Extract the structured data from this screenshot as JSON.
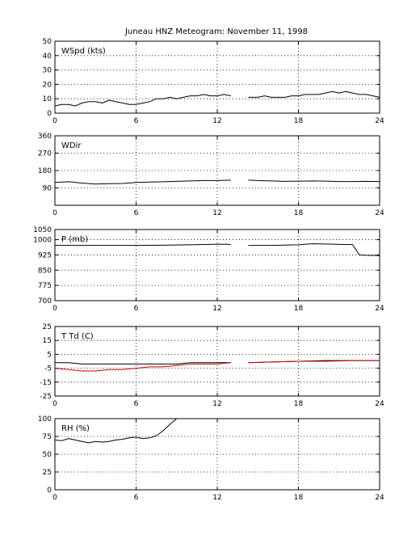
{
  "title": "Juneau HNZ Meteogram:  November 11, 1998",
  "chart_data": [
    {
      "type": "line",
      "label": "WSpd (kts)",
      "x_ticks": [
        0,
        6,
        12,
        18,
        24
      ],
      "y_ticks": [
        0,
        10,
        20,
        30,
        40,
        50
      ],
      "xlim": [
        0,
        24
      ],
      "ylim": [
        0,
        50
      ],
      "grid": true,
      "series": [
        {
          "color": "#000000",
          "points": [
            [
              0,
              5
            ],
            [
              0.5,
              6
            ],
            [
              1,
              6
            ],
            [
              1.5,
              5
            ],
            [
              2,
              7
            ],
            [
              2.5,
              8
            ],
            [
              3,
              8
            ],
            [
              3.5,
              7
            ],
            [
              4,
              9
            ],
            [
              4.5,
              8
            ],
            [
              5,
              7
            ],
            [
              5.5,
              6
            ],
            [
              6,
              6
            ],
            [
              6.5,
              7
            ],
            [
              7,
              8
            ],
            [
              7.5,
              10
            ],
            [
              8,
              10
            ],
            [
              8.5,
              11
            ],
            [
              9,
              10
            ],
            [
              9.5,
              11
            ],
            [
              10,
              12
            ],
            [
              10.5,
              12
            ],
            [
              11,
              13
            ],
            [
              11.5,
              12
            ],
            [
              12,
              12
            ],
            [
              12.5,
              13
            ],
            [
              13,
              12
            ],
            null,
            [
              14.3,
              11
            ],
            [
              15,
              11
            ],
            [
              15.5,
              12
            ],
            [
              16,
              11
            ],
            [
              16.5,
              11
            ],
            [
              17,
              11
            ],
            [
              17.5,
              12
            ],
            [
              18,
              12
            ],
            [
              18.5,
              13
            ],
            [
              19,
              13
            ],
            [
              19.5,
              13
            ],
            [
              20,
              14
            ],
            [
              20.5,
              15
            ],
            [
              21,
              14
            ],
            [
              21.5,
              15
            ],
            [
              22,
              14
            ],
            [
              22.5,
              13
            ],
            [
              23,
              13
            ],
            [
              23.5,
              12
            ],
            [
              24,
              11
            ]
          ]
        }
      ]
    },
    {
      "type": "line",
      "label": "WDir",
      "x_ticks": [
        0,
        6,
        12,
        18,
        24
      ],
      "y_ticks": [
        90,
        180,
        270,
        360
      ],
      "xlim": [
        0,
        24
      ],
      "ylim": [
        0,
        360
      ],
      "grid": true,
      "series": [
        {
          "color": "#000000",
          "points": [
            [
              0,
              118
            ],
            [
              1,
              122
            ],
            [
              2,
              115
            ],
            [
              3,
              110
            ],
            [
              4,
              112
            ],
            [
              5,
              113
            ],
            [
              6,
              118
            ],
            [
              7,
              120
            ],
            [
              8,
              122
            ],
            [
              9,
              124
            ],
            [
              10,
              126
            ],
            [
              11,
              128
            ],
            [
              12,
              128
            ],
            [
              13,
              130
            ],
            null,
            [
              14.3,
              130
            ],
            [
              15,
              128
            ],
            [
              16,
              126
            ],
            [
              17,
              124
            ],
            [
              18,
              125
            ],
            [
              19,
              126
            ],
            [
              20,
              125
            ],
            [
              21,
              123
            ],
            [
              22,
              123
            ],
            [
              23,
              124
            ],
            [
              24,
              123
            ]
          ]
        }
      ]
    },
    {
      "type": "line",
      "label": "P (mb)",
      "x_ticks": [
        0,
        6,
        12,
        18,
        24
      ],
      "y_ticks": [
        700,
        775,
        850,
        925,
        1000,
        1050
      ],
      "xlim": [
        0,
        24
      ],
      "ylim": [
        700,
        1050
      ],
      "grid": true,
      "series": [
        {
          "color": "#000000",
          "points": [
            [
              0,
              972
            ],
            [
              2,
              972
            ],
            [
              4,
              972
            ],
            [
              6,
              972
            ],
            [
              8,
              973
            ],
            [
              10,
              975
            ],
            [
              12,
              978
            ],
            [
              13,
              977
            ],
            null,
            [
              14.3,
              972
            ],
            [
              16,
              972
            ],
            [
              18,
              975
            ],
            [
              19,
              980
            ],
            [
              20,
              979
            ],
            [
              21,
              977
            ],
            [
              22,
              976
            ],
            [
              22.5,
              925
            ],
            [
              23,
              923
            ],
            [
              24,
              922
            ]
          ]
        }
      ]
    },
    {
      "type": "line",
      "label": "T Td (C)",
      "x_ticks": [
        0,
        6,
        12,
        18,
        24
      ],
      "y_ticks": [
        -25,
        -15,
        -5,
        5,
        15,
        25
      ],
      "xlim": [
        0,
        24
      ],
      "ylim": [
        -25,
        25
      ],
      "grid": true,
      "series": [
        {
          "color": "#000000",
          "points": [
            [
              0,
              -1
            ],
            [
              1,
              -1
            ],
            [
              2,
              -2
            ],
            [
              3,
              -2
            ],
            [
              4,
              -2
            ],
            [
              5,
              -2
            ],
            [
              6,
              -2
            ],
            [
              7,
              -2
            ],
            [
              8,
              -2
            ],
            [
              9,
              -2
            ],
            [
              10,
              -1
            ],
            [
              11,
              -1
            ],
            [
              12,
              -1
            ],
            [
              13,
              -1
            ],
            null,
            [
              14.3,
              -1
            ],
            [
              16,
              -0.5
            ],
            [
              18,
              0
            ],
            [
              20,
              0.5
            ],
            [
              22,
              0.5
            ],
            [
              24,
              0.5
            ]
          ]
        },
        {
          "color": "#cc0000",
          "points": [
            [
              0,
              -5
            ],
            [
              1,
              -6
            ],
            [
              2,
              -7
            ],
            [
              3,
              -7
            ],
            [
              4,
              -6
            ],
            [
              5,
              -6
            ],
            [
              6,
              -5
            ],
            [
              7,
              -4
            ],
            [
              8,
              -4
            ],
            [
              9,
              -3
            ],
            [
              10,
              -2
            ],
            [
              11,
              -2
            ],
            [
              12,
              -2
            ],
            [
              13,
              -1
            ],
            null,
            [
              14.3,
              -1
            ],
            [
              16,
              -0.5
            ],
            [
              18,
              0
            ],
            [
              20,
              0
            ],
            [
              22,
              0.5
            ],
            [
              24,
              0.5
            ]
          ]
        }
      ]
    },
    {
      "type": "line",
      "label": "RH (%)",
      "x_ticks": [
        0,
        6,
        12,
        18,
        24
      ],
      "y_ticks": [
        0,
        25,
        50,
        75,
        100
      ],
      "xlim": [
        0,
        24
      ],
      "ylim": [
        0,
        100
      ],
      "grid": true,
      "series": [
        {
          "color": "#000000",
          "points": [
            [
              0,
              70
            ],
            [
              0.5,
              69
            ],
            [
              1,
              72
            ],
            [
              1.5,
              70
            ],
            [
              2,
              68
            ],
            [
              2.5,
              66
            ],
            [
              3,
              68
            ],
            [
              3.5,
              67
            ],
            [
              4,
              68
            ],
            [
              4.5,
              70
            ],
            [
              5,
              71
            ],
            [
              5.5,
              73
            ],
            [
              6,
              74
            ],
            [
              6.5,
              72
            ],
            [
              7,
              73
            ],
            [
              7.5,
              76
            ],
            [
              8,
              83
            ],
            [
              8.5,
              92
            ],
            [
              9,
              100
            ]
          ]
        }
      ]
    }
  ]
}
